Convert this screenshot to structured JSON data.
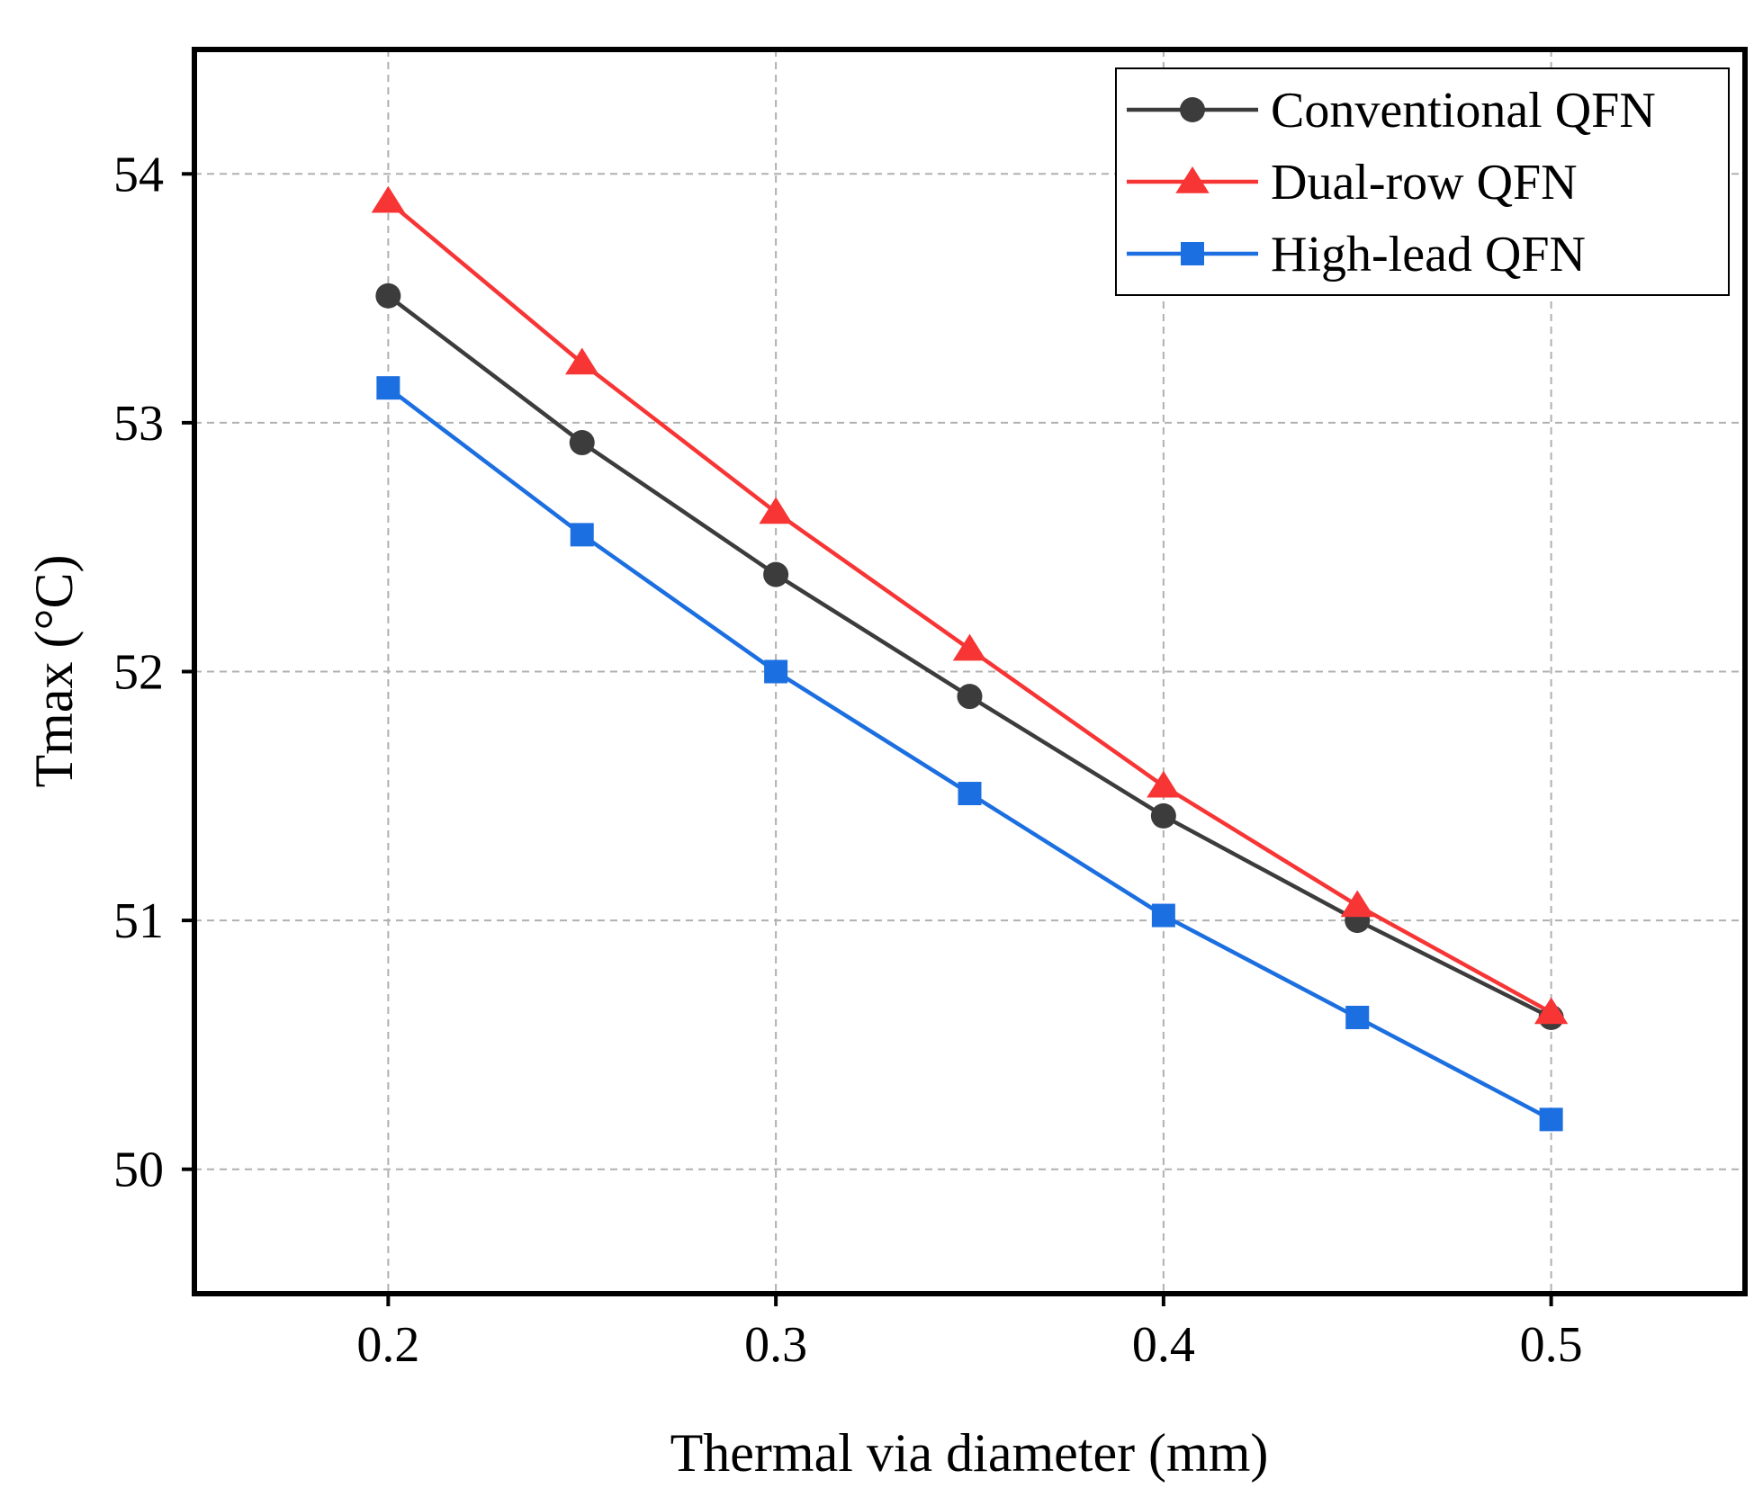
{
  "chart_data": {
    "type": "line",
    "title": "",
    "xlabel": "Thermal via diameter (mm)",
    "ylabel": "Tmax (°C)",
    "xlim": [
      0.15,
      0.55
    ],
    "ylim": [
      49.5,
      54.5
    ],
    "xticks": [
      0.2,
      0.3,
      0.4,
      0.5
    ],
    "xtick_labels": [
      "0.2",
      "0.3",
      "0.4",
      "0.5"
    ],
    "yticks": [
      50,
      51,
      52,
      53,
      54
    ],
    "ytick_labels": [
      "50",
      "51",
      "52",
      "53",
      "54"
    ],
    "grid": true,
    "legend_position": "top-right",
    "x": [
      0.2,
      0.25,
      0.3,
      0.35,
      0.4,
      0.45,
      0.5
    ],
    "series": [
      {
        "name": "Conventional QFN",
        "marker": "circle",
        "color": "#3c3c3c",
        "values": [
          53.51,
          52.92,
          52.39,
          51.9,
          51.42,
          51.0,
          50.61
        ]
      },
      {
        "name": "Dual-row QFN",
        "marker": "triangle",
        "color": "#f73535",
        "values": [
          53.89,
          53.24,
          52.64,
          52.09,
          51.54,
          51.06,
          50.63
        ]
      },
      {
        "name": "High-lead QFN",
        "marker": "square",
        "color": "#1c6fe0",
        "values": [
          53.14,
          52.55,
          52.0,
          51.51,
          51.02,
          50.61,
          50.2
        ]
      }
    ]
  }
}
